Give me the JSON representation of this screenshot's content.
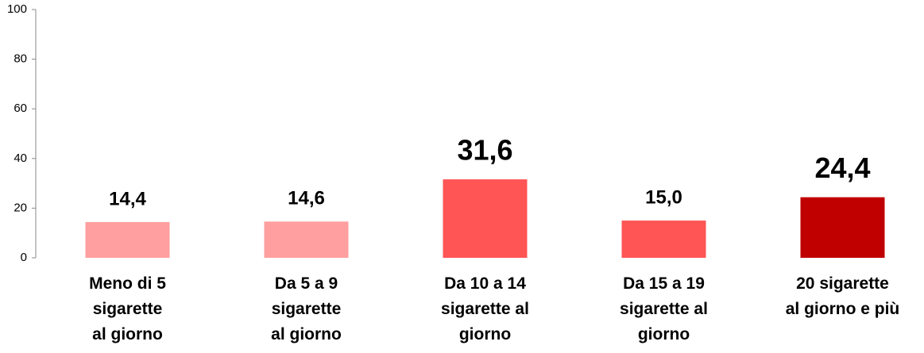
{
  "chart_data": {
    "type": "bar",
    "categories": [
      "Meno di 5\nsigarette\nal giorno",
      "Da 5 a 9\nsigarette\nal giorno",
      "Da 10 a 14\nsigarette al\ngiorno",
      "Da 15 a 19\nsigarette al\ngiorno",
      "20 sigarette\nal giorno e più"
    ],
    "values": [
      14.4,
      14.6,
      31.6,
      15.0,
      24.4
    ],
    "value_labels": [
      "14,4",
      "14,6",
      "31,6",
      "15,0",
      "24,4"
    ],
    "colors": [
      "#ff9f9f",
      "#ff9f9f",
      "#ff5555",
      "#ff5555",
      "#c00000"
    ],
    "ylim": [
      0,
      100
    ],
    "yticks": [
      0,
      20,
      40,
      60,
      80,
      100
    ],
    "grid": false
  }
}
